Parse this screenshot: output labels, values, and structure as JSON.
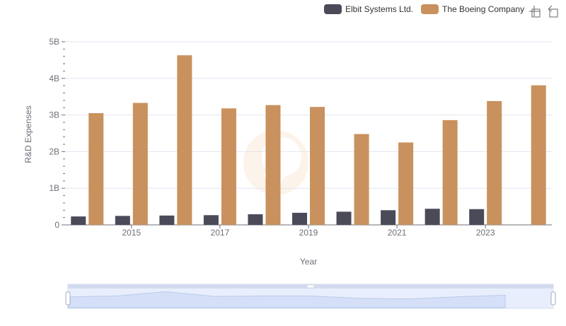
{
  "chart_data": {
    "type": "bar",
    "title": "",
    "xlabel": "Year",
    "ylabel": "R&D Expenses",
    "categories": [
      "2014",
      "2015",
      "2016",
      "2017",
      "2018",
      "2019",
      "2020",
      "2021",
      "2022",
      "2023",
      "2024"
    ],
    "x_tick_labels": [
      "2015",
      "2017",
      "2019",
      "2021",
      "2023"
    ],
    "y_tick_labels": [
      "0",
      "1B",
      "2B",
      "3B",
      "4B",
      "5B"
    ],
    "ylim": [
      0,
      5000000000
    ],
    "grid": true,
    "legend_position": "top-right",
    "series": [
      {
        "name": "Elbit Systems Ltd.",
        "color": "#4a4a59",
        "values": [
          230000000,
          245000000,
          255000000,
          265000000,
          290000000,
          330000000,
          360000000,
          400000000,
          440000000,
          430000000,
          null
        ]
      },
      {
        "name": "The Boeing Company",
        "color": "#c9915e",
        "values": [
          3050000000,
          3330000000,
          4630000000,
          3180000000,
          3270000000,
          3220000000,
          2480000000,
          2250000000,
          2860000000,
          3380000000,
          3810000000
        ]
      }
    ]
  },
  "toolbox": {
    "zoom_icon": "zoom-icon",
    "restore_icon": "restore-icon"
  },
  "datazoom": {
    "start": 0,
    "end": 1,
    "handle_icon": "drag-handle-icon"
  }
}
